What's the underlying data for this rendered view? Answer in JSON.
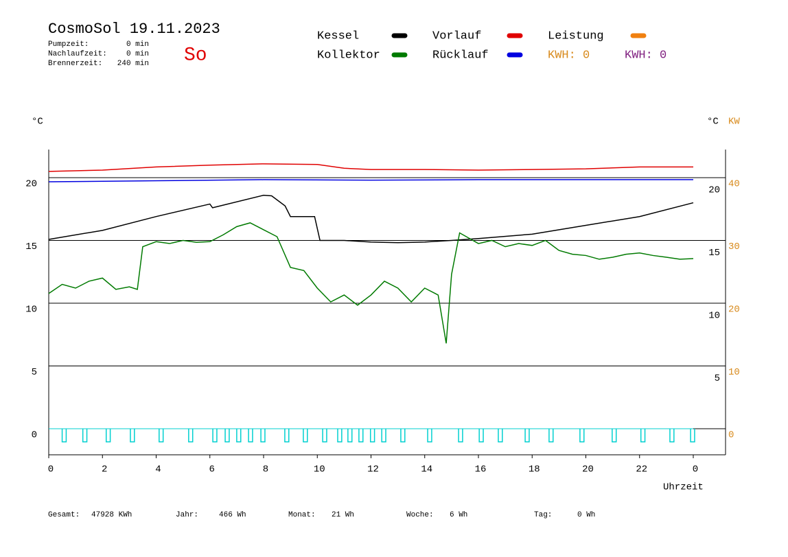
{
  "chart_data": {
    "type": "line",
    "title": "CosmoSol 19.11.2023",
    "day": "So",
    "info": [
      {
        "label": "Pumpzeit:",
        "value": "0 min"
      },
      {
        "label": "Nachlaufzeit:",
        "value": "0 min"
      },
      {
        "label": "Brennerzeit:",
        "value": "240 min"
      }
    ],
    "y_label": "°C",
    "y2_label": "KW",
    "y3_label": "°C",
    "x_label": "Uhrzeit",
    "xlim": [
      0,
      24
    ],
    "xticks": [
      0,
      2,
      4,
      6,
      8,
      10,
      12,
      14,
      16,
      18,
      20,
      22,
      {
        "value": 24,
        "label": "0"
      }
    ],
    "ylim": [
      -2.08,
      22.24
    ],
    "yticks": [
      0,
      5,
      10,
      15,
      20
    ],
    "y2lim": [
      -4.16,
      44.48
    ],
    "y2ticks": [
      0,
      10,
      20,
      30,
      40
    ],
    "y2color": "#d88a1c",
    "y3lim": [
      -1.1,
      23.2
    ],
    "y3ticks": [
      5,
      10,
      15,
      20
    ],
    "grid": true,
    "series": [
      {
        "name": "Kessel",
        "color": "#000000",
        "x": [
          0,
          2,
          4,
          6,
          6.1,
          8,
          8.3,
          8.8,
          9,
          9.9,
          10.1,
          11,
          12,
          13,
          14,
          15,
          16,
          18,
          20,
          22,
          24
        ],
        "values": [
          15.08,
          15.8,
          16.9,
          17.9,
          17.6,
          18.6,
          18.55,
          17.75,
          16.9,
          16.9,
          15.0,
          15.0,
          14.87,
          14.82,
          14.87,
          15.0,
          15.15,
          15.5,
          16.2,
          16.9,
          18.0
        ]
      },
      {
        "name": "Kollektor",
        "color": "#007a00",
        "x": [
          0,
          0.5,
          1,
          1.5,
          2,
          2.5,
          3,
          3.3,
          3.5,
          4,
          4.5,
          5,
          5.5,
          6,
          6.5,
          7,
          7.5,
          8,
          8.5,
          9,
          9.5,
          10,
          10.5,
          11,
          11.5,
          12,
          12.5,
          13,
          13.5,
          14,
          14.5,
          14.8,
          15,
          15.3,
          16,
          16.5,
          17,
          17.5,
          18,
          18.5,
          19,
          19.5,
          20,
          20.5,
          21,
          21.5,
          22,
          22.5,
          23,
          23.5,
          24
        ],
        "values": [
          10.77,
          11.5,
          11.2,
          11.75,
          12.0,
          11.1,
          11.3,
          11.1,
          14.5,
          14.9,
          14.75,
          15.0,
          14.85,
          14.9,
          15.45,
          16.1,
          16.4,
          15.85,
          15.3,
          12.85,
          12.6,
          11.2,
          10.1,
          10.65,
          9.84,
          10.65,
          11.75,
          11.2,
          10.1,
          11.2,
          10.65,
          6.8,
          12.3,
          15.6,
          14.75,
          15.0,
          14.5,
          14.75,
          14.6,
          15.0,
          14.2,
          13.9,
          13.8,
          13.5,
          13.66,
          13.9,
          14.0,
          13.8,
          13.66,
          13.5,
          13.55
        ]
      },
      {
        "name": "Vorlauf",
        "color": "#e00000",
        "x": [
          0,
          2,
          4,
          6,
          8,
          10,
          11,
          12,
          14,
          16,
          18,
          20,
          22,
          24
        ],
        "values": [
          20.5,
          20.6,
          20.85,
          21.0,
          21.1,
          21.05,
          20.75,
          20.65,
          20.65,
          20.6,
          20.65,
          20.7,
          20.85,
          20.85
        ]
      },
      {
        "name": "Rücklauf",
        "color": "#0000e0",
        "x": [
          0,
          4,
          8,
          12,
          16,
          20,
          24
        ],
        "values": [
          19.67,
          19.75,
          19.84,
          19.8,
          19.84,
          19.84,
          19.84
        ]
      },
      {
        "name": "Leistung",
        "color": "#f08010",
        "x": [],
        "values": []
      }
    ],
    "pump": {
      "color": "#00d0d0",
      "low": -1.05,
      "width": 0.15,
      "starts": [
        0.5,
        1.27,
        2.14,
        3.04,
        4.11,
        5.21,
        6.11,
        6.57,
        7.0,
        7.44,
        7.9,
        8.79,
        9.48,
        10.2,
        10.76,
        11.14,
        11.55,
        11.98,
        12.4,
        13.11,
        14.11,
        15.26,
        16.03,
        16.74,
        17.74,
        18.63,
        19.78,
        20.98,
        22.05,
        23.13,
        23.9
      ]
    },
    "kwh_labels": [
      {
        "text": "KWH: 0",
        "color": "#d88a1c"
      },
      {
        "text": "KWH: 0",
        "color": "#802080"
      }
    ],
    "footer": [
      {
        "label": "Gesamt:",
        "value": "47928 KWh"
      },
      {
        "label": "Jahr:",
        "value": "466 Wh"
      },
      {
        "label": "Monat:",
        "value": "21 Wh"
      },
      {
        "label": "Woche:",
        "value": "6 Wh"
      },
      {
        "label": "Tag:",
        "value": "0 Wh"
      }
    ]
  }
}
